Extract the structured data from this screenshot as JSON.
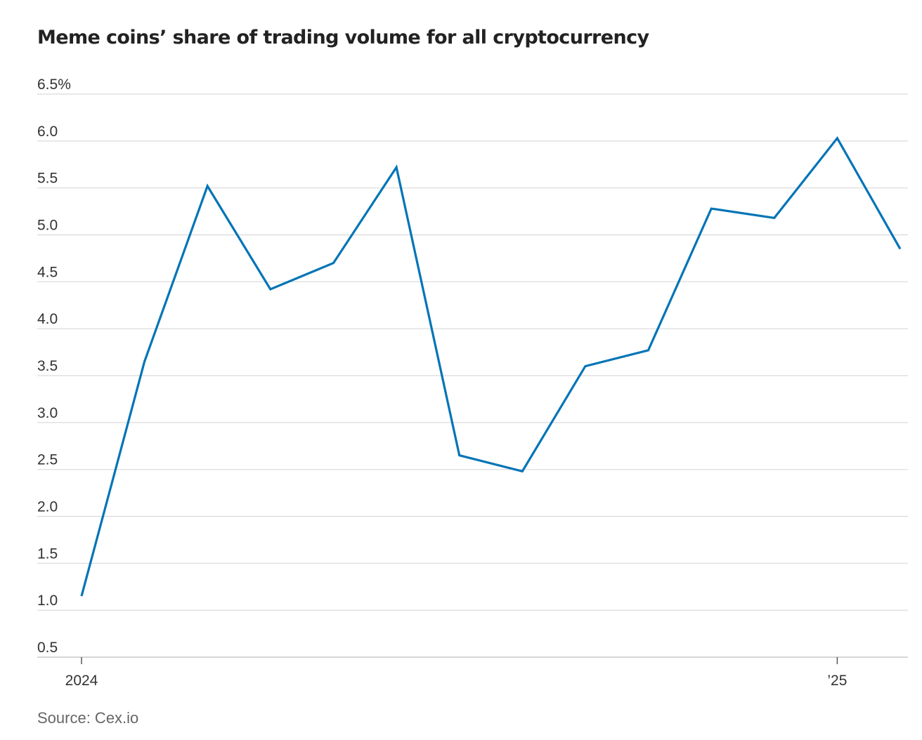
{
  "chart_data": {
    "type": "line",
    "title": "Meme coins’ share of trading volume for all cryptocurrency",
    "xlabel": "",
    "ylabel": "",
    "x": [
      "2024-01",
      "2024-02",
      "2024-03",
      "2024-04",
      "2024-05",
      "2024-06",
      "2024-07",
      "2024-08",
      "2024-09",
      "2024-10",
      "2024-11",
      "2024-12",
      "2025-01",
      "2025-02"
    ],
    "x_ticks": [
      {
        "x": "2024-01",
        "label": "2024"
      },
      {
        "x": "2025-01",
        "label": "’25"
      }
    ],
    "series": [
      {
        "values": [
          1.15,
          3.65,
          5.52,
          4.42,
          4.7,
          5.72,
          2.65,
          2.48,
          3.6,
          3.77,
          5.28,
          5.18,
          6.03,
          4.85
        ],
        "color": "#0274b6"
      }
    ],
    "ylim": [
      0.5,
      6.5
    ],
    "y_ticks": [
      {
        "value": 6.5,
        "label": "6.5%"
      },
      {
        "value": 6.0,
        "label": "6.0"
      },
      {
        "value": 5.5,
        "label": "5.5"
      },
      {
        "value": 5.0,
        "label": "5.0"
      },
      {
        "value": 4.5,
        "label": "4.5"
      },
      {
        "value": 4.0,
        "label": "4.0"
      },
      {
        "value": 3.5,
        "label": "3.5"
      },
      {
        "value": 3.0,
        "label": "3.0"
      },
      {
        "value": 2.5,
        "label": "2.5"
      },
      {
        "value": 2.0,
        "label": "2.0"
      },
      {
        "value": 1.5,
        "label": "1.5"
      },
      {
        "value": 1.0,
        "label": "1.0"
      },
      {
        "value": 0.5,
        "label": "0.5"
      }
    ],
    "grid": true,
    "legend": "none",
    "source": "Source: Cex.io",
    "colors": {
      "line": "#0274b6",
      "grid": "#d9d9d9",
      "baseline": "#c8c8c8",
      "source_text": "#666666"
    }
  }
}
